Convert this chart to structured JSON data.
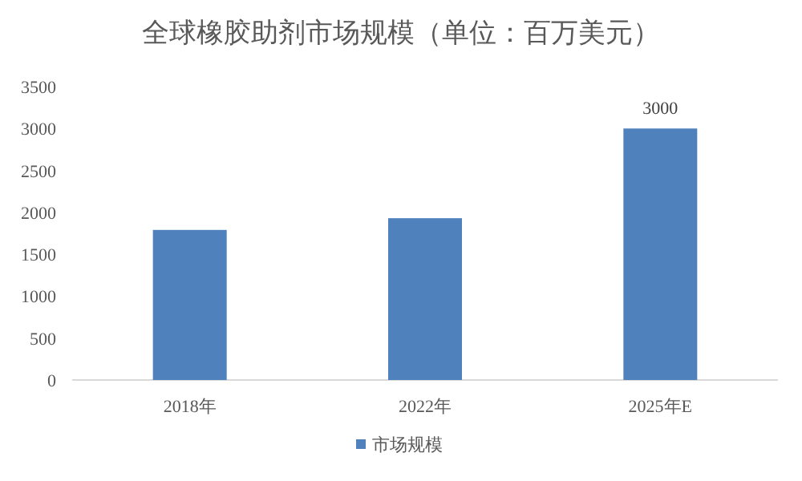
{
  "chart_data": {
    "type": "bar",
    "title": "全球橡胶助剂市场规模（单位：百万美元）",
    "categories": [
      "2018年",
      "2022年",
      "2025年E"
    ],
    "series": [
      {
        "name": "市场规模",
        "color": "#4f81bd",
        "values": [
          1790,
          1930,
          3000
        ],
        "value_labels": [
          null,
          null,
          "3000"
        ]
      }
    ],
    "ylim": [
      0,
      3500
    ],
    "yticks": [
      0,
      500,
      1000,
      1500,
      2000,
      2500,
      3000,
      3500
    ],
    "grid": false,
    "legend": "bottom"
  }
}
